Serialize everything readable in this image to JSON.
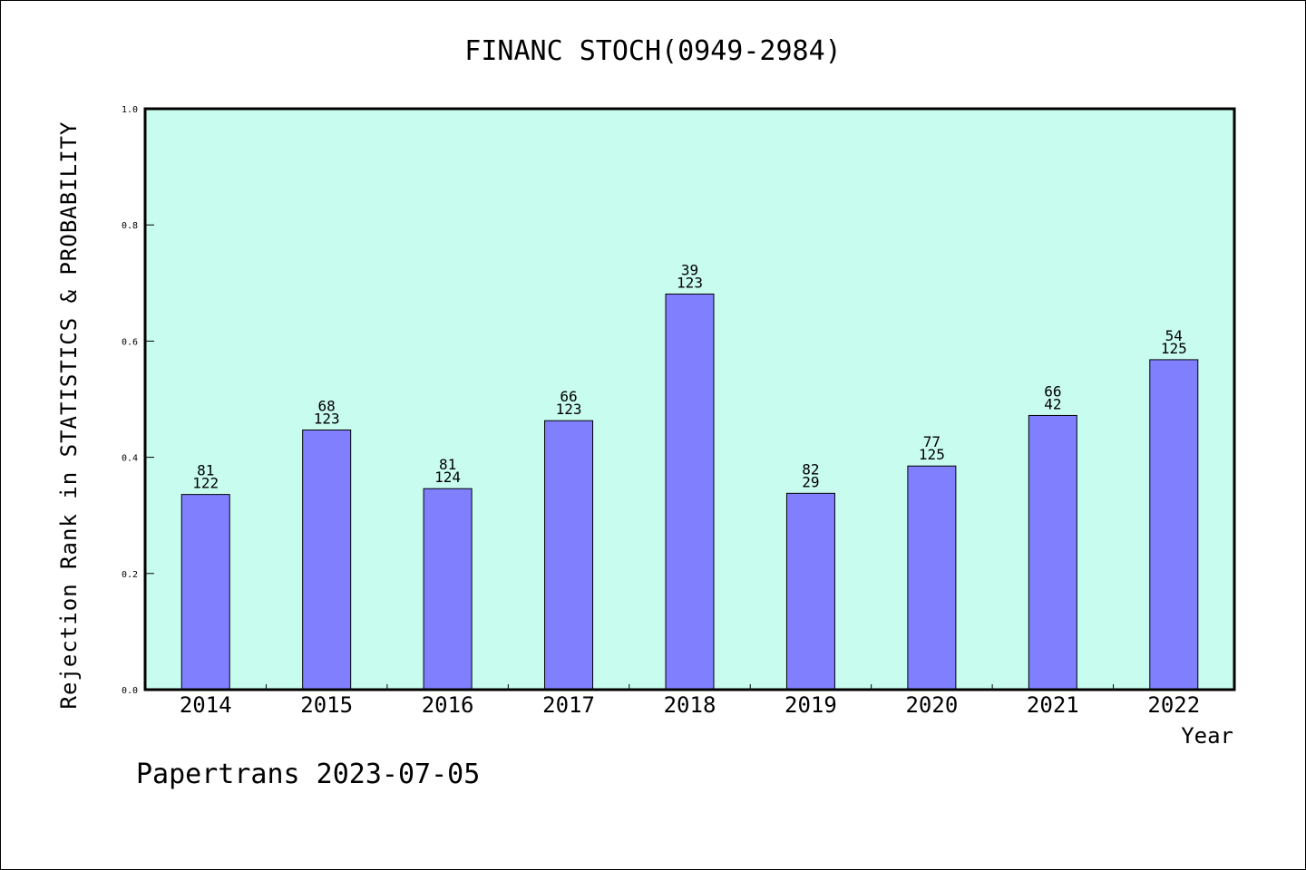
{
  "chart_data": {
    "type": "bar",
    "title": "FINANC STOCH(0949-2984)",
    "ylabel": "Rejection Rank in STATISTICS & PROBABILITY",
    "xlabel": "Year",
    "categories": [
      "2014",
      "2015",
      "2016",
      "2017",
      "2018",
      "2019",
      "2020",
      "2021",
      "2022"
    ],
    "values": [
      0.336,
      0.447,
      0.346,
      0.463,
      0.681,
      0.338,
      0.385,
      0.472,
      0.568
    ],
    "annotations_top": [
      "81",
      "68",
      "81",
      "66",
      "39",
      "82",
      "77",
      "66",
      "54"
    ],
    "annotations_bottom": [
      "122",
      "123",
      "124",
      "123",
      "123",
      "29",
      "125",
      "42",
      "125"
    ],
    "ylim": [
      0.0,
      1.0
    ],
    "yticks": [
      "0.0",
      "0.2",
      "0.4",
      "0.6",
      "0.8",
      "1.0"
    ],
    "grid": false,
    "colors": {
      "plot_background": "#c8fcee",
      "bar_fill": "#8080ff",
      "bar_stroke": "#000000"
    }
  },
  "footer": "Papertrans 2023-07-05"
}
